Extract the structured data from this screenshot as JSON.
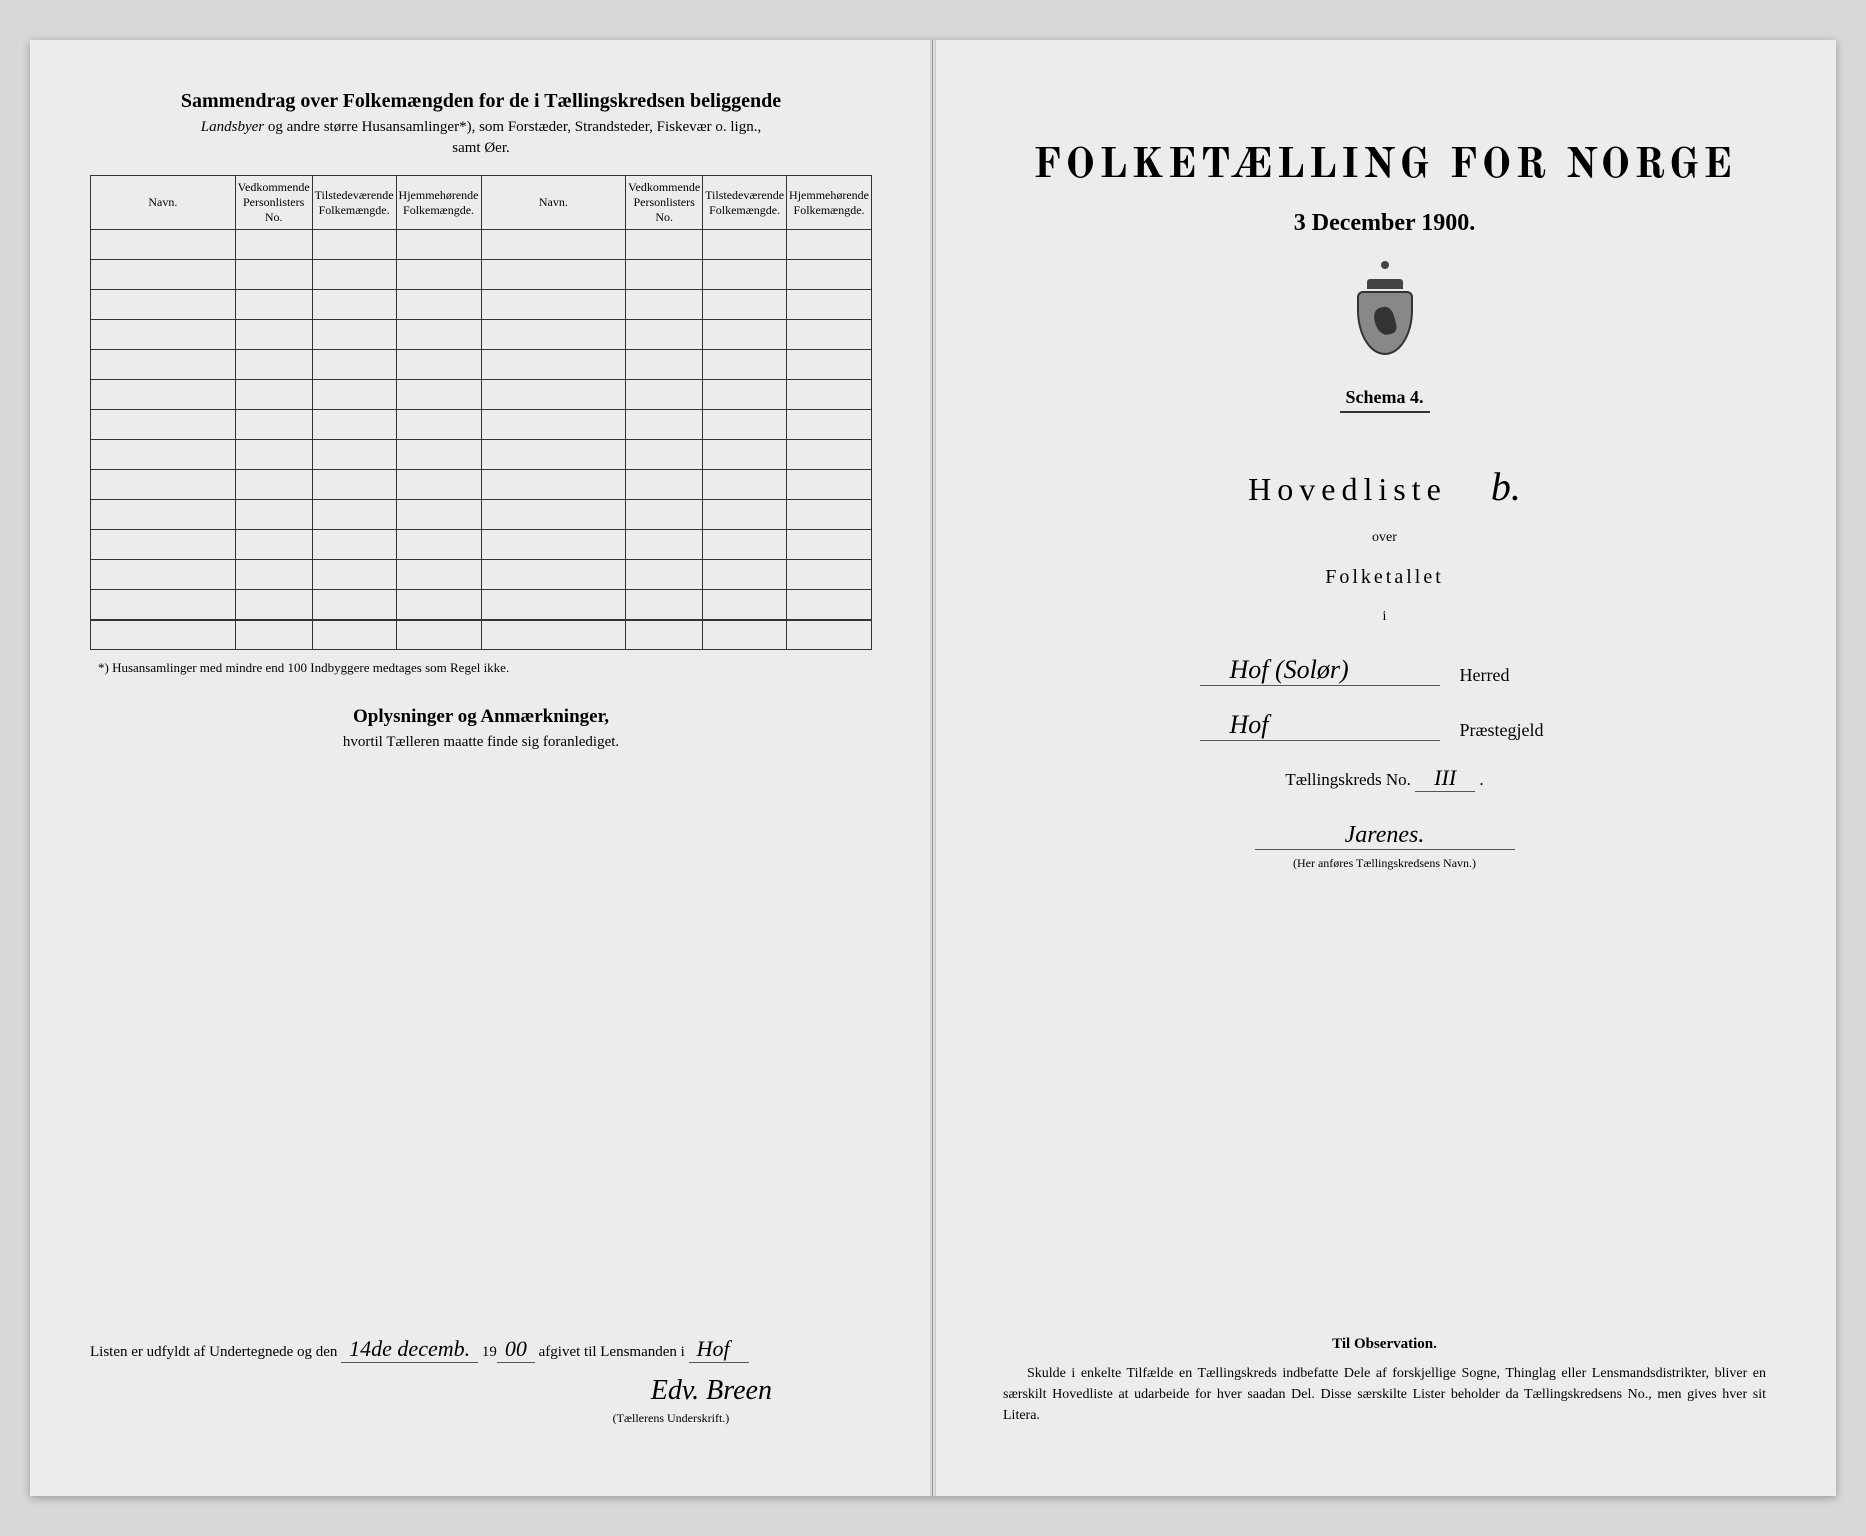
{
  "left": {
    "title": "Sammendrag over Folkemængden for de i Tællingskredsen beliggende",
    "subtitle_italic": "Landsbyer",
    "subtitle_rest": " og andre større Husansamlinger*), som Forstæder, Strandsteder, Fiskevær o. lign.,",
    "samt": "samt Øer.",
    "columns": {
      "c1": "Navn.",
      "c2": "Vedkommende Personlisters No.",
      "c3": "Tilstedeværende Folkemængde.",
      "c4": "Hjemmehørende Folkemængde.",
      "c5": "Navn.",
      "c6": "Vedkommende Personlisters No.",
      "c7": "Tilstedeværende Folkemængde.",
      "c8": "Hjemmehørende Folkemængde."
    },
    "footnote": "*) Husansamlinger med mindre end 100 Indbyggere medtages som Regel ikke.",
    "oplys_title": "Oplysninger og Anmærkninger,",
    "oplys_sub": "hvortil Tælleren maatte finde sig foranlediget.",
    "sig_text_1": "Listen er udfyldt af Undertegnede og den",
    "sig_date_hw": "14de decemb.",
    "sig_year": "19",
    "sig_year_hw": "00",
    "sig_text_2": "afgivet til Lensmanden i",
    "sig_place_hw": "Hof",
    "sig_name_hw": "Edv. Breen",
    "sig_caption": "(Tællerens Underskrift.)"
  },
  "right": {
    "main_title": "FOLKETÆLLING FOR NORGE",
    "date": "3 December 1900.",
    "schema": "Schema 4.",
    "hovedliste": "Hovedliste",
    "hovedliste_hw": "b.",
    "over": "over",
    "folketallet": "Folketallet",
    "i": "i",
    "herred_hw": "Hof (Solør)",
    "herred_label": "Herred",
    "praest_hw": "Hof",
    "praest_label": "Præstegjeld",
    "kreds_text": "Tællingskreds No.",
    "kreds_hw": "III",
    "kreds_navn_hw": "Jarenes.",
    "kreds_caption": "(Her anføres Tællingskredsens Navn.)",
    "obs_title": "Til Observation.",
    "obs_body": "Skulde i enkelte Tilfælde en Tællingskreds indbefatte Dele af forskjellige Sogne, Thinglag eller Lensmandsdistrikter, bliver en særskilt Hovedliste at udarbeide for hver saadan Del. Disse særskilte Lister beholder da Tællingskredsens No., men gives hver sit Litera."
  },
  "table_rows": 14
}
